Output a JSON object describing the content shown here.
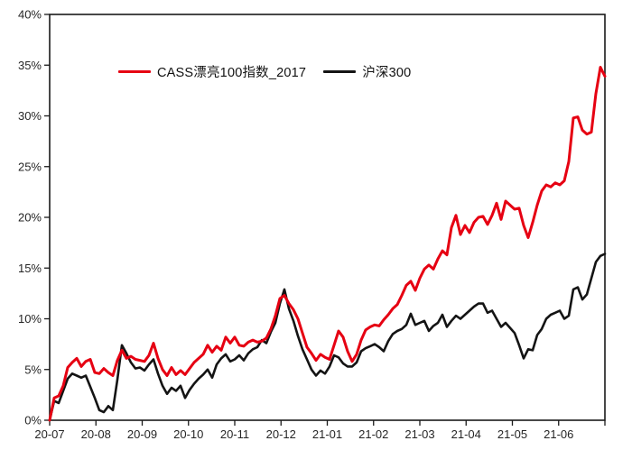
{
  "chart_data": {
    "type": "line",
    "title": "",
    "xlabel": "",
    "ylabel": "",
    "grid": false,
    "legend_position": "inside-top-left",
    "ylim": [
      0,
      40
    ],
    "ytick_labels": [
      "0%",
      "5%",
      "10%",
      "15%",
      "20%",
      "25%",
      "30%",
      "35%",
      "40%"
    ],
    "x_categories": [
      "20-07",
      "20-08",
      "20-09",
      "20-10",
      "20-11",
      "20-12",
      "21-01",
      "21-02",
      "21-03",
      "21-04",
      "21-05",
      "21-06"
    ],
    "axis_color": "#1a1a1a",
    "tick_label_color": "#262626",
    "unit": "percent",
    "series": [
      {
        "name": "CASS漂亮100指数_2017",
        "color": "#e60012",
        "width": 3,
        "values": [
          0,
          2.2,
          2.4,
          3.4,
          5.2,
          5.7,
          6.1,
          5.3,
          5.8,
          6,
          4.7,
          4.6,
          5.1,
          4.7,
          4.4,
          5.9,
          6.9,
          6.1,
          6.3,
          6,
          5.9,
          5.8,
          6.4,
          7.6,
          6.1,
          5,
          4.4,
          5.2,
          4.5,
          4.9,
          4.5,
          5.1,
          5.7,
          6.1,
          6.5,
          7.4,
          6.7,
          7.3,
          6.9,
          8.2,
          7.6,
          8.2,
          7.4,
          7.3,
          7.7,
          7.9,
          7.7,
          7.8,
          8.1,
          9,
          10.3,
          12,
          12.3,
          11.5,
          10.9,
          10,
          8.6,
          7.2,
          6.6,
          5.9,
          6.5,
          6.2,
          6,
          7.4,
          8.8,
          8.2,
          6.8,
          5.8,
          6.5,
          7.9,
          8.9,
          9.2,
          9.4,
          9.3,
          9.9,
          10.4,
          11,
          11.4,
          12.3,
          13.3,
          13.7,
          12.8,
          14,
          14.9,
          15.3,
          14.9,
          15.9,
          16.7,
          16.3,
          19,
          20.2,
          18.3,
          19.2,
          18.5,
          19.5,
          20,
          20.1,
          19.3,
          20.2,
          21.4,
          19.8,
          21.6,
          21.2,
          20.8,
          20.9,
          19.2,
          18,
          19.5,
          21.2,
          22.6,
          23.2,
          23,
          23.4,
          23.2,
          23.6,
          25.5,
          29.8,
          29.9,
          28.6,
          28.2,
          28.4,
          32.2,
          34.8,
          33.9
        ]
      },
      {
        "name": "沪深300",
        "color": "#141414",
        "width": 2.6,
        "values": [
          0,
          1.9,
          1.7,
          2.9,
          4.1,
          4.6,
          4.4,
          4.2,
          4.4,
          3.3,
          2.2,
          1,
          0.8,
          1.4,
          1,
          4,
          7.4,
          6.6,
          5.7,
          5.1,
          5.2,
          4.9,
          5.5,
          6,
          4.6,
          3.4,
          2.6,
          3.2,
          2.9,
          3.4,
          2.2,
          3,
          3.6,
          4.1,
          4.5,
          5,
          4.2,
          5.5,
          6.1,
          6.5,
          5.8,
          6,
          6.4,
          5.9,
          6.6,
          7,
          7.2,
          7.9,
          7.6,
          8.7,
          9.6,
          11.5,
          12.9,
          11,
          9.8,
          8.3,
          7,
          6,
          5,
          4.4,
          4.9,
          4.6,
          5.3,
          6.4,
          6.2,
          5.6,
          5.3,
          5.3,
          5.7,
          6.8,
          7.1,
          7.3,
          7.5,
          7.2,
          6.8,
          7.8,
          8.5,
          8.8,
          9,
          9.4,
          10.5,
          9.4,
          9.6,
          9.8,
          8.8,
          9.3,
          9.6,
          10.4,
          9.2,
          9.8,
          10.3,
          10,
          10.4,
          10.8,
          11.2,
          11.5,
          11.5,
          10.6,
          10.8,
          10,
          9.2,
          9.6,
          9.1,
          8.6,
          7.4,
          6.1,
          7,
          6.9,
          8.4,
          9,
          10,
          10.4,
          10.6,
          10.8,
          10,
          10.3,
          12.9,
          13.1,
          11.9,
          12.4,
          14,
          15.6,
          16.2,
          16.4
        ]
      }
    ]
  }
}
